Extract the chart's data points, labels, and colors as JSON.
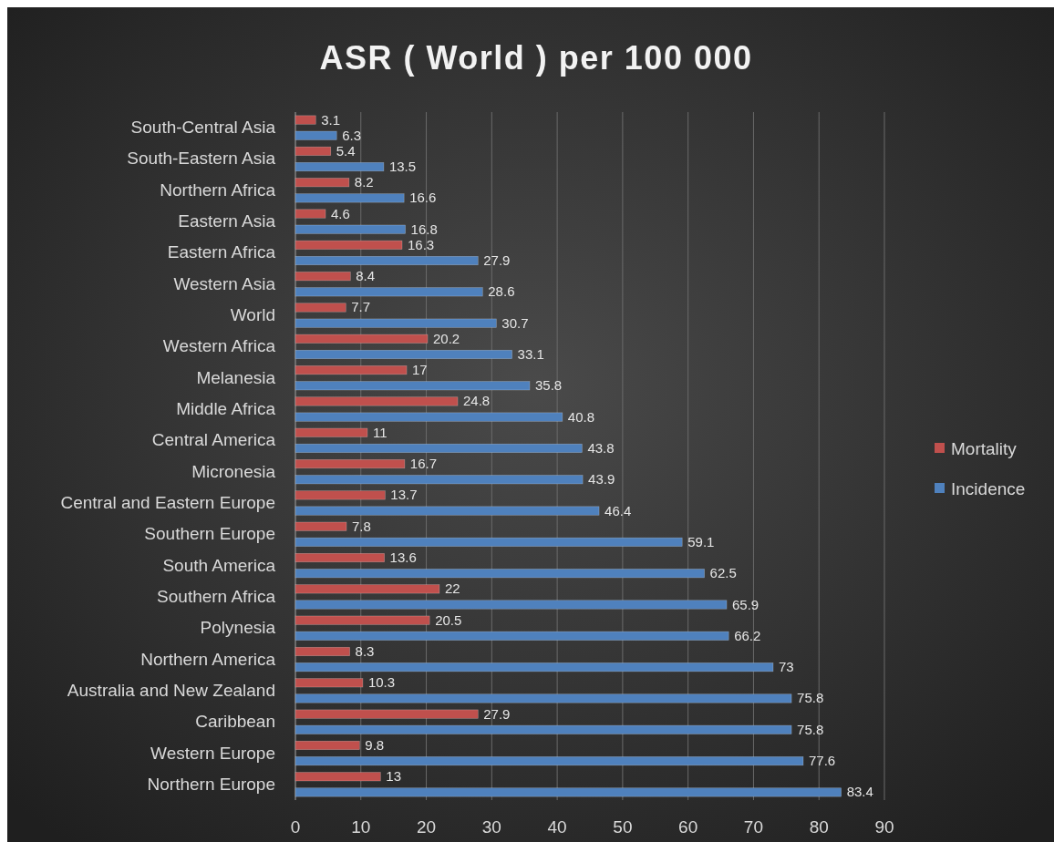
{
  "chart_data": {
    "type": "bar",
    "orientation": "horizontal",
    "title": "ASR ( World ) per 100 000",
    "categories": [
      "South-Central Asia",
      "South-Eastern Asia",
      "Northern Africa",
      "Eastern Asia",
      "Eastern Africa",
      "Western Asia",
      "World",
      "Western Africa",
      "Melanesia",
      "Middle Africa",
      "Central America",
      "Micronesia",
      "Central and Eastern Europe",
      "Southern Europe",
      "South America",
      "Southern Africa",
      "Polynesia",
      "Northern America",
      "Australia and New Zealand",
      "Caribbean",
      "Western Europe",
      "Northern Europe"
    ],
    "series": [
      {
        "name": "Mortality",
        "color": "#c0504d",
        "values": [
          3.1,
          5.4,
          8.2,
          4.6,
          16.3,
          8.4,
          7.7,
          20.2,
          17,
          24.8,
          11,
          16.7,
          13.7,
          7.8,
          13.6,
          22,
          20.5,
          8.3,
          10.3,
          27.9,
          9.8,
          13
        ]
      },
      {
        "name": "Incidence",
        "color": "#4f81bd",
        "values": [
          6.3,
          13.5,
          16.6,
          16.8,
          27.9,
          28.6,
          30.7,
          33.1,
          35.8,
          40.8,
          43.8,
          43.9,
          46.4,
          59.1,
          62.5,
          65.9,
          66.2,
          73,
          75.8,
          75.8,
          77.6,
          83.4
        ]
      }
    ],
    "xlim": [
      0,
      90
    ],
    "xticks": [
      0,
      10,
      20,
      30,
      40,
      50,
      60,
      70,
      80,
      90
    ],
    "grid": "x",
    "legend": "right",
    "data_labels": true
  }
}
